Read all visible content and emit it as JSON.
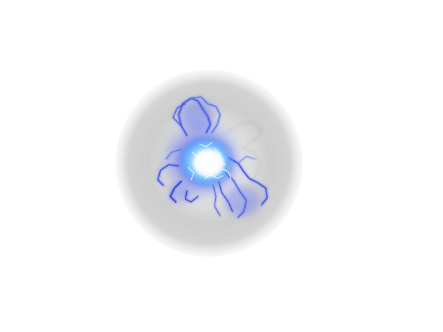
{
  "scene": {
    "background": "#ffffff",
    "object": "energy-orb",
    "colors": {
      "sphere_edge": "#cfcfcf",
      "sphere_shadow": "#c2c2c2",
      "sphere_light": "#ececec",
      "plasma_core": "#ffffff",
      "plasma_inner": "#9fdcff",
      "plasma_glow": "#3a7bff",
      "plasma_outer": "#2a3de0",
      "lightning": "#5b6cf0"
    }
  }
}
